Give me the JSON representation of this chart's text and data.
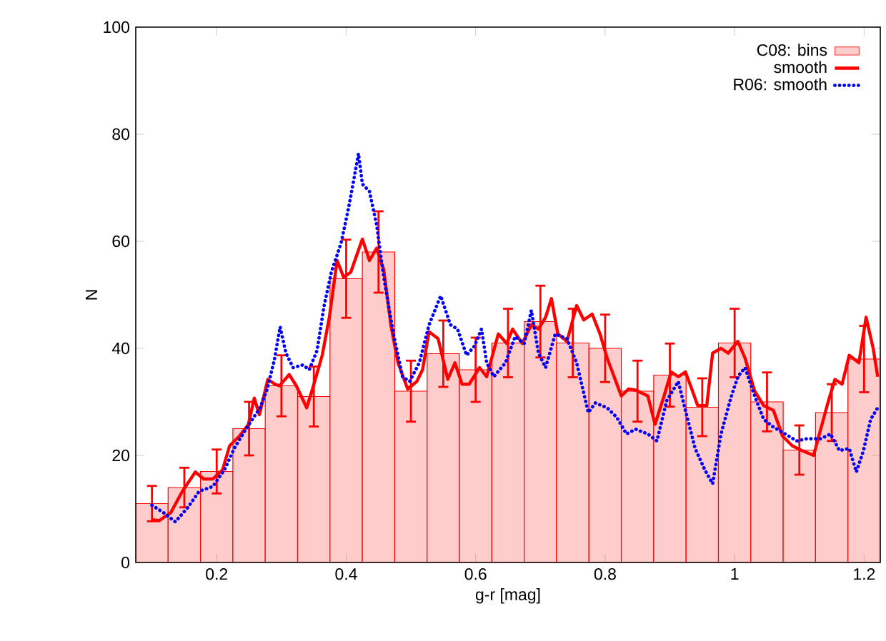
{
  "chart_data": {
    "type": "histogram",
    "xlabel": "g-r [mag]",
    "ylabel": "N",
    "xlim": [
      0.075,
      1.225
    ],
    "ylim": [
      0,
      100
    ],
    "xticks": [
      0.2,
      0.4,
      0.6,
      0.8,
      1,
      1.2
    ],
    "yticks": [
      0,
      20,
      40,
      60,
      80,
      100
    ],
    "legend": "top right",
    "grid": false,
    "series": [
      {
        "name": "C08: bins",
        "color": "#ffcccc",
        "bins": [
          0.075,
          0.125,
          0.175,
          0.225,
          0.275,
          0.325,
          0.375,
          0.425,
          0.475,
          0.525,
          0.575,
          0.625,
          0.675,
          0.725,
          0.775,
          0.825,
          0.875,
          0.925,
          0.975,
          1.025,
          1.075,
          1.125,
          1.175,
          1.225
        ],
        "values": [
          11,
          14,
          17,
          25,
          33,
          31,
          53,
          58,
          32,
          39,
          36,
          41,
          45,
          41,
          40,
          32,
          35,
          29,
          41,
          30,
          21,
          28,
          38
        ],
        "errors": [
          3.3,
          3.7,
          4.1,
          5,
          5.7,
          5.6,
          7.3,
          7.6,
          5.7,
          6.2,
          6,
          6.4,
          6.7,
          6.4,
          6.3,
          5.7,
          5.9,
          5.4,
          6.4,
          5.5,
          4.6,
          5.3,
          6.2
        ]
      },
      {
        "name": "smooth",
        "type": "line",
        "color": "#ff0000",
        "line_style": "solid",
        "x": [
          0.1,
          0.111,
          0.129,
          0.147,
          0.167,
          0.18,
          0.194,
          0.209,
          0.22,
          0.235,
          0.249,
          0.258,
          0.266,
          0.279,
          0.29,
          0.297,
          0.312,
          0.323,
          0.339,
          0.348,
          0.363,
          0.374,
          0.386,
          0.396,
          0.407,
          0.425,
          0.436,
          0.447,
          0.458,
          0.469,
          0.48,
          0.495,
          0.509,
          0.518,
          0.528,
          0.542,
          0.557,
          0.568,
          0.579,
          0.59,
          0.606,
          0.617,
          0.635,
          0.648,
          0.657,
          0.672,
          0.686,
          0.697,
          0.708,
          0.717,
          0.727,
          0.741,
          0.756,
          0.767,
          0.78,
          0.792,
          0.803,
          0.825,
          0.836,
          0.847,
          0.866,
          0.877,
          0.891,
          0.902,
          0.913,
          0.924,
          0.935,
          0.943,
          0.957,
          0.966,
          0.979,
          0.99,
          1.005,
          1.016,
          1.031,
          1.045,
          1.06,
          1.074,
          1.089,
          1.104,
          1.122,
          1.133,
          1.144,
          1.155,
          1.166,
          1.177,
          1.192,
          1.203,
          1.214,
          1.221
        ],
        "values": [
          8,
          7.8,
          9.3,
          13.3,
          16.9,
          15.6,
          15.6,
          17.3,
          21.8,
          23.6,
          25.8,
          30.7,
          27.6,
          34.2,
          33.3,
          33,
          35.1,
          33,
          28.9,
          32.4,
          38.7,
          45.8,
          56.4,
          53.3,
          54.2,
          60.4,
          56.4,
          58.7,
          54.7,
          44.4,
          37.3,
          32.4,
          33.8,
          36,
          43.1,
          41.8,
          34.2,
          37.3,
          33.3,
          33.3,
          36.4,
          34.7,
          42.7,
          40.9,
          43.6,
          40.9,
          44.4,
          43.6,
          45.8,
          49.3,
          42.7,
          41.3,
          48,
          45.3,
          46.4,
          42.7,
          38.2,
          31.1,
          32.4,
          32.2,
          31.1,
          25.8,
          31.1,
          35.6,
          34.7,
          35.6,
          32,
          29.3,
          29.3,
          39.1,
          40,
          39.1,
          41.3,
          38.2,
          32,
          29.3,
          28.4,
          23.6,
          21.8,
          20.9,
          20,
          24.9,
          29.8,
          34.2,
          33.3,
          38.7,
          37.3,
          45.8,
          40,
          34.7
        ]
      },
      {
        "name": "R06: smooth",
        "type": "line",
        "color": "#0000ff",
        "line_style": "dotted",
        "x": [
          0.1,
          0.118,
          0.136,
          0.155,
          0.173,
          0.194,
          0.212,
          0.227,
          0.245,
          0.267,
          0.278,
          0.289,
          0.298,
          0.307,
          0.318,
          0.333,
          0.343,
          0.355,
          0.366,
          0.377,
          0.392,
          0.403,
          0.412,
          0.419,
          0.425,
          0.436,
          0.447,
          0.458,
          0.473,
          0.487,
          0.498,
          0.513,
          0.528,
          0.546,
          0.561,
          0.572,
          0.586,
          0.598,
          0.609,
          0.617,
          0.628,
          0.646,
          0.661,
          0.675,
          0.686,
          0.697,
          0.708,
          0.723,
          0.741,
          0.756,
          0.774,
          0.785,
          0.803,
          0.818,
          0.833,
          0.847,
          0.866,
          0.88,
          0.895,
          0.913,
          0.924,
          0.939,
          0.954,
          0.966,
          0.979,
          0.994,
          1.005,
          1.016,
          1.031,
          1.045,
          1.06,
          1.078,
          1.096,
          1.111,
          1.133,
          1.148,
          1.162,
          1.177,
          1.188,
          1.199,
          1.21,
          1.221
        ],
        "values": [
          10.7,
          9.3,
          7.6,
          10.2,
          13.3,
          14.2,
          17.3,
          21.3,
          24.9,
          28.9,
          32.4,
          37.8,
          44,
          39.1,
          36.4,
          36.9,
          36,
          39.6,
          48,
          54.2,
          59.6,
          65.8,
          71.6,
          76.4,
          70.7,
          69.3,
          63.1,
          53.3,
          42.7,
          34.7,
          33.8,
          37.3,
          44.4,
          49.8,
          44.4,
          43.6,
          38.7,
          40.4,
          43.6,
          37.3,
          34.7,
          37.3,
          42.2,
          40.9,
          47.1,
          39.1,
          36.4,
          42.7,
          41.8,
          37.3,
          28,
          29.8,
          28.9,
          27.1,
          24,
          24.9,
          24,
          22.7,
          30.2,
          33.8,
          28.4,
          21.3,
          17.3,
          14.7,
          24,
          30.7,
          34.7,
          36.4,
          31.1,
          26.7,
          25.3,
          24,
          22.7,
          23.1,
          23.1,
          24,
          20.9,
          21.3,
          16.9,
          20.9,
          26.7,
          28.9
        ]
      }
    ]
  }
}
